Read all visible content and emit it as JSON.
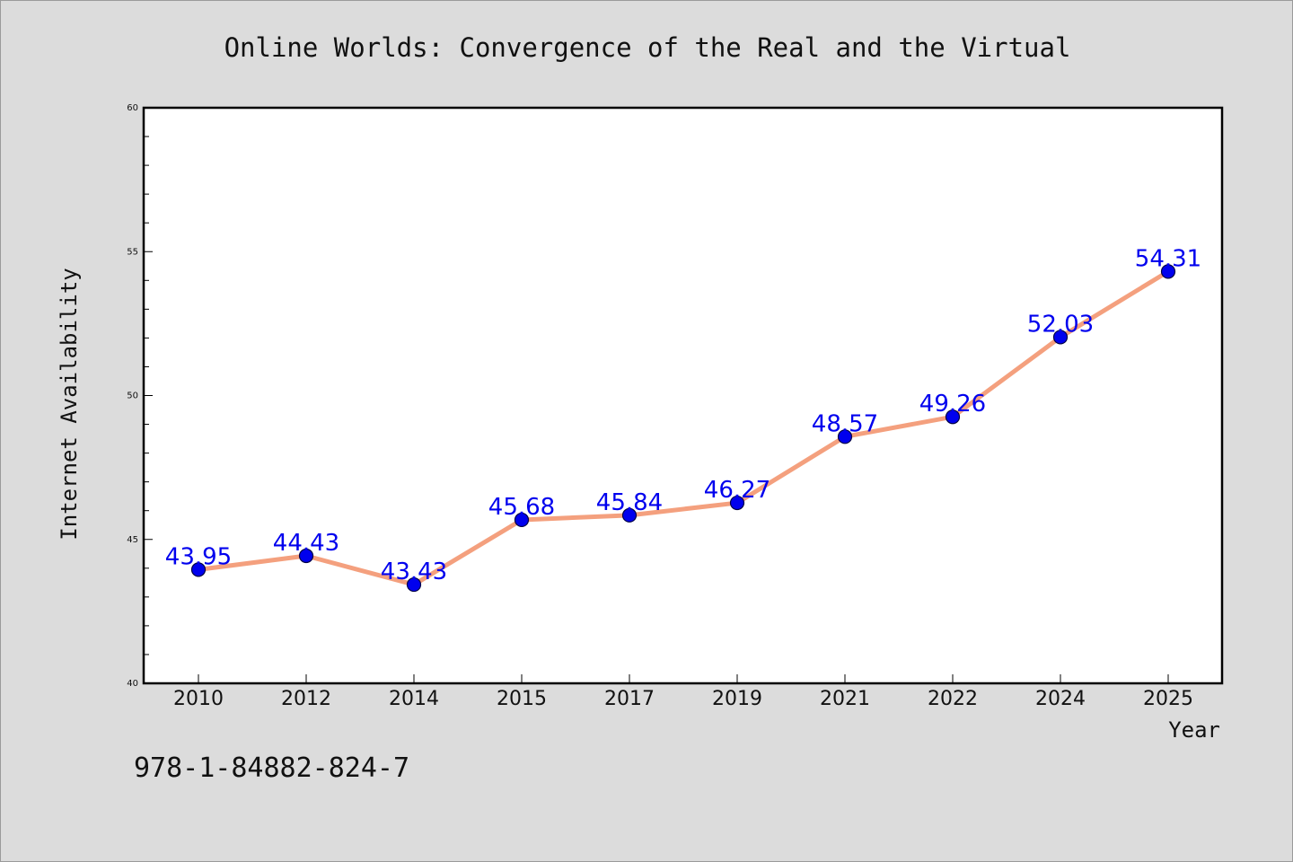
{
  "chart_data": {
    "type": "line",
    "title": "Online Worlds: Convergence of the Real and the Virtual",
    "xlabel": "Year",
    "ylabel": "Internet Availability",
    "categories": [
      "2010",
      "2012",
      "2014",
      "2015",
      "2017",
      "2019",
      "2021",
      "2022",
      "2024",
      "2025"
    ],
    "series": [
      {
        "values": [
          43.95,
          44.43,
          43.43,
          45.68,
          45.84,
          46.27,
          48.57,
          49.26,
          52.03,
          54.31
        ],
        "labels": [
          "43.95",
          "44.43",
          "43.43",
          "45.68",
          "45.84",
          "46.27",
          "48.57",
          "49.26",
          "52.03",
          "54.31"
        ]
      }
    ],
    "ylim": [
      40,
      60
    ],
    "yticks": [
      "40",
      "45",
      "50",
      "55",
      "60"
    ],
    "grid": false,
    "legend": "none",
    "colors": {
      "line": "#f4a07e",
      "marker": "#0000ee",
      "marker_edge": "#000044",
      "data_label": "#0000ee",
      "plot_bg": "#ffffff",
      "figure_bg": "#dcdcdc"
    }
  },
  "footer": {
    "isbn": "978-1-84882-824-7"
  }
}
